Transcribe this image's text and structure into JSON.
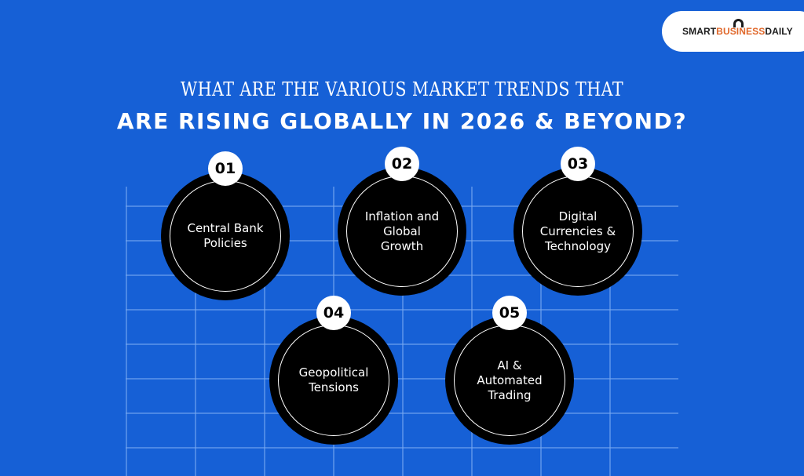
{
  "logo": {
    "smart": "SMART",
    "business": "BUSINESS",
    "daily": "DAILY"
  },
  "title": {
    "line1": "WHAT ARE THE VARIOUS MARKET TRENDS THAT",
    "line2": "ARE RISING GLOBALLY IN 2026 & BEYOND?"
  },
  "trends": [
    {
      "number": "01",
      "label": "Central Bank\nPolicies"
    },
    {
      "number": "02",
      "label": "Inflation and\nGlobal\nGrowth"
    },
    {
      "number": "03",
      "label": "Digital\nCurrencies  &\nTechnology"
    },
    {
      "number": "04",
      "label": "Geopolitical\nTensions"
    },
    {
      "number": "05",
      "label": "AI &\nAutomated\nTrading"
    }
  ],
  "colors": {
    "background": "#1660d6",
    "circle": "#000000",
    "logo_accent": "#e0682b"
  }
}
